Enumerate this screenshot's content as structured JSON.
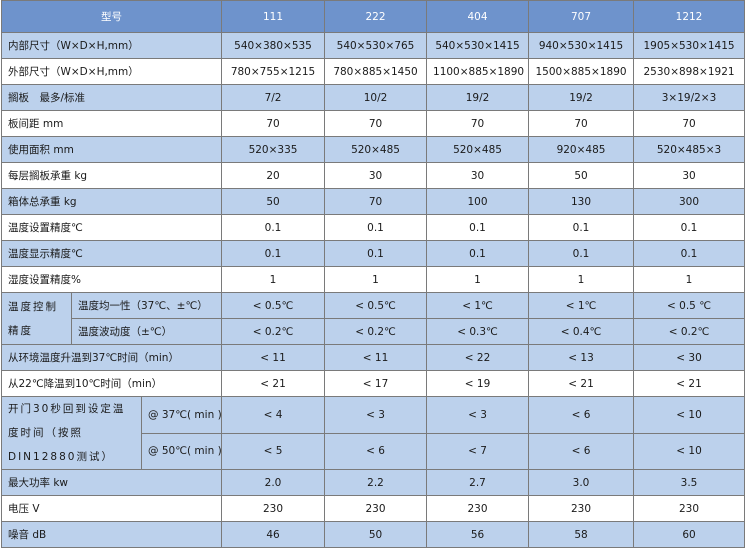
{
  "header": {
    "label": "型号",
    "models": [
      "111",
      "222",
      "404",
      "707",
      "1212"
    ]
  },
  "rows": [
    {
      "label": "内部尺寸（W×D×H,mm）",
      "values": [
        "540×380×535",
        "540×530×765",
        "540×530×1415",
        "940×530×1415",
        "1905×530×1415"
      ]
    },
    {
      "label": "外部尺寸（W×D×H,mm）",
      "values": [
        "780×755×1215",
        "780×885×1450",
        "1100×885×1890",
        "1500×885×1890",
        "2530×898×1921"
      ]
    },
    {
      "label": "搁板　最多/标准",
      "values": [
        "7/2",
        "10/2",
        "19/2",
        "19/2",
        "3×19/2×3"
      ]
    },
    {
      "label": "板间距 mm",
      "values": [
        "70",
        "70",
        "70",
        "70",
        "70"
      ]
    },
    {
      "label": "使用面积 mm",
      "values": [
        "520×335",
        "520×485",
        "520×485",
        "920×485",
        "520×485×3"
      ]
    },
    {
      "label": "每层搁板承重 kg",
      "values": [
        "20",
        "30",
        "30",
        "50",
        "30"
      ]
    },
    {
      "label": "箱体总承重 kg",
      "values": [
        "50",
        "70",
        "100",
        "130",
        "300"
      ]
    },
    {
      "label": "温度设置精度℃",
      "values": [
        "0.1",
        "0.1",
        "0.1",
        "0.1",
        "0.1"
      ]
    },
    {
      "label": "温度显示精度℃",
      "values": [
        "0.1",
        "0.1",
        "0.1",
        "0.1",
        "0.1"
      ]
    },
    {
      "label": "湿度设置精度%",
      "values": [
        "1",
        "1",
        "1",
        "1",
        "1"
      ]
    },
    {
      "group": "温度控制精度",
      "sub": [
        {
          "label": "温度均一性（37℃、±℃）",
          "values": [
            "< 0.5℃",
            "< 0.5℃",
            "< 1℃",
            "< 1℃",
            "< 0.5 ℃"
          ]
        },
        {
          "label": "温度波动度（±℃）",
          "values": [
            "< 0.2℃",
            "< 0.2℃",
            "< 0.3℃",
            "< 0.4℃",
            "< 0.2℃"
          ]
        }
      ]
    },
    {
      "label": "从环境温度升温到37℃时间（min）",
      "values": [
        "< 11",
        "< 11",
        "< 22",
        "< 13",
        "< 30"
      ]
    },
    {
      "label": "从22℃降温到10℃时间（min）",
      "values": [
        "< 21",
        "< 17",
        "< 19",
        "< 21",
        "< 21"
      ]
    },
    {
      "group": "开门30秒回到设定温度时间（按照DIN12880测试）",
      "sub": [
        {
          "label": "@ 37℃( min )",
          "values": [
            "< 4",
            "< 3",
            "< 3",
            "< 6",
            "< 10"
          ]
        },
        {
          "label": "@ 50℃( min )",
          "values": [
            "< 5",
            "< 6",
            "< 7",
            "< 6",
            "< 10"
          ]
        }
      ]
    },
    {
      "label": "最大功率 kw",
      "values": [
        "2.0",
        "2.2",
        "2.7",
        "3.0",
        "3.5"
      ]
    },
    {
      "label": "电压 V",
      "values": [
        "230",
        "230",
        "230",
        "230",
        "230"
      ]
    },
    {
      "label": "噪音 dB",
      "values": [
        "46",
        "50",
        "56",
        "58",
        "60"
      ]
    }
  ]
}
